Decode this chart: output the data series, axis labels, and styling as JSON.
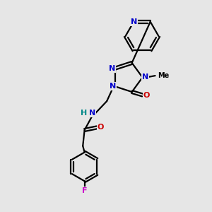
{
  "background_color": "#e6e6e6",
  "bond_color": "#000000",
  "N_color": "#0000cc",
  "O_color": "#cc0000",
  "F_color": "#cc00cc",
  "H_color": "#008888",
  "figsize": [
    3.0,
    3.0
  ],
  "dpi": 100,
  "xlim": [
    0,
    10
  ],
  "ylim": [
    0,
    10
  ],
  "lw": 1.6,
  "fs": 8.0
}
